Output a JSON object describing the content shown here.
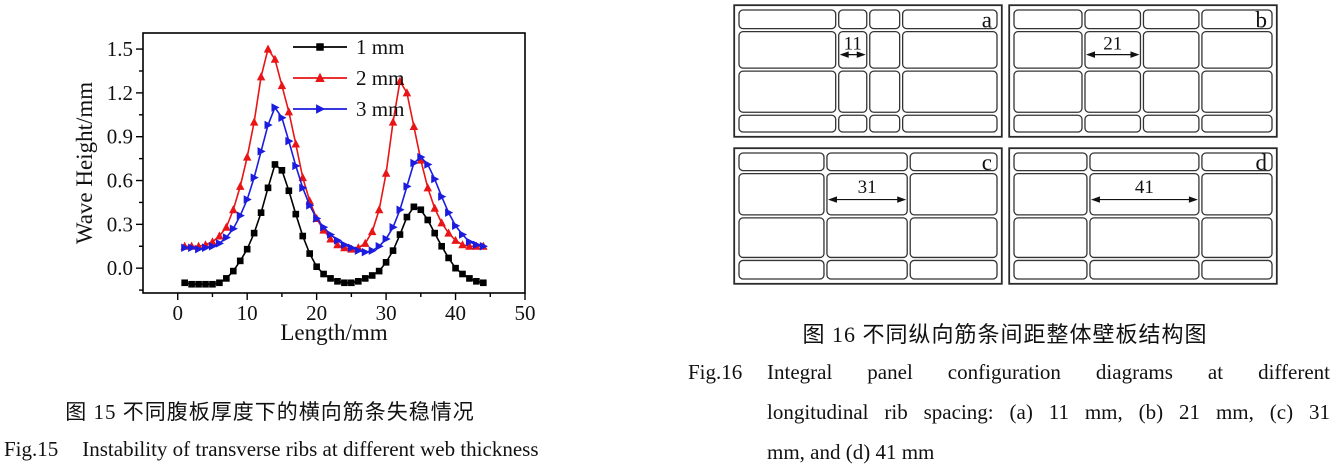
{
  "figure15": {
    "caption_zh": "图 15  不同腹板厚度下的横向筋条失稳情况",
    "caption_en_label": "Fig.15",
    "caption_en_text": "Instability of transverse ribs at different web thickness"
  },
  "chart_data": {
    "type": "line",
    "title": "",
    "xlabel": "Length/mm",
    "ylabel": "Wave Height/mm",
    "xlim": [
      -5,
      50
    ],
    "ylim": [
      -0.17,
      1.61
    ],
    "xticks": [
      0,
      10,
      20,
      30,
      40,
      50
    ],
    "yticks": [
      0.0,
      0.3,
      0.6,
      0.9,
      1.2,
      1.5
    ],
    "x_minor_step": 5,
    "y_minor_step": 0.15,
    "grid": false,
    "legend_position": "top-right-inside",
    "x": [
      1,
      2,
      3,
      4,
      5,
      6,
      7,
      8,
      9,
      10,
      11,
      12,
      13,
      14,
      15,
      16,
      17,
      18,
      19,
      20,
      21,
      22,
      23,
      24,
      25,
      26,
      27,
      28,
      29,
      30,
      31,
      32,
      33,
      34,
      35,
      36,
      37,
      38,
      39,
      40,
      41,
      42,
      43,
      44
    ],
    "series": [
      {
        "name": "1 mm",
        "color": "#000000",
        "marker": "square",
        "values": [
          -0.1,
          -0.11,
          -0.11,
          -0.11,
          -0.11,
          -0.1,
          -0.07,
          -0.02,
          0.05,
          0.13,
          0.24,
          0.38,
          0.55,
          0.71,
          0.67,
          0.53,
          0.37,
          0.22,
          0.1,
          0.01,
          -0.04,
          -0.07,
          -0.09,
          -0.1,
          -0.1,
          -0.09,
          -0.07,
          -0.05,
          -0.02,
          0.04,
          0.12,
          0.23,
          0.35,
          0.42,
          0.4,
          0.33,
          0.24,
          0.15,
          0.07,
          0.0,
          -0.04,
          -0.07,
          -0.09,
          -0.1
        ]
      },
      {
        "name": "2 mm",
        "color": "#e81416",
        "marker": "triangle-up",
        "values": [
          0.15,
          0.15,
          0.15,
          0.16,
          0.18,
          0.22,
          0.28,
          0.4,
          0.56,
          0.76,
          1.0,
          1.31,
          1.5,
          1.43,
          1.25,
          1.07,
          0.85,
          0.62,
          0.46,
          0.34,
          0.26,
          0.2,
          0.16,
          0.14,
          0.13,
          0.14,
          0.17,
          0.25,
          0.4,
          0.65,
          1.0,
          1.28,
          1.2,
          0.97,
          0.74,
          0.55,
          0.41,
          0.31,
          0.24,
          0.19,
          0.16,
          0.15,
          0.15,
          0.15
        ]
      },
      {
        "name": "3 mm",
        "color": "#1c1cdf",
        "marker": "triangle-right",
        "values": [
          0.14,
          0.14,
          0.13,
          0.14,
          0.15,
          0.17,
          0.21,
          0.27,
          0.36,
          0.47,
          0.62,
          0.8,
          0.98,
          1.1,
          1.03,
          0.87,
          0.7,
          0.55,
          0.43,
          0.34,
          0.28,
          0.23,
          0.19,
          0.16,
          0.14,
          0.12,
          0.11,
          0.12,
          0.15,
          0.2,
          0.28,
          0.4,
          0.56,
          0.72,
          0.76,
          0.71,
          0.61,
          0.49,
          0.38,
          0.29,
          0.23,
          0.18,
          0.16,
          0.15
        ]
      }
    ]
  },
  "figure16": {
    "caption_zh": "图 16 不同纵向筋条间距整体壁板结构图",
    "caption_en_label": "Fig.16",
    "caption_en_lines": [
      "Integral panel configuration diagrams at different",
      "longitudinal  rib spacing: (a) 11 mm, (b) 21 mm, (c) 31",
      "mm, and (d) 41 mm"
    ],
    "panels": [
      {
        "label": "a",
        "dim_value": "11",
        "dim_col": 1,
        "cols": [
          0.382,
          0.119,
          0.126,
          0.373
        ],
        "rows": [
          0.173,
          0.316,
          0.353,
          0.158
        ]
      },
      {
        "label": "b",
        "dim_value": "21",
        "dim_col": 1,
        "cols": [
          0.272,
          0.224,
          0.224,
          0.28
        ],
        "rows": [
          0.173,
          0.316,
          0.353,
          0.158
        ]
      },
      {
        "label": "c",
        "dim_value": "31",
        "dim_col": 1,
        "cols": [
          0.337,
          0.319,
          0.344
        ],
        "rows": [
          0.16,
          0.343,
          0.33,
          0.167
        ]
      },
      {
        "label": "d",
        "dim_value": "41",
        "dim_col": 1,
        "cols": [
          0.291,
          0.429,
          0.28
        ],
        "rows": [
          0.16,
          0.343,
          0.33,
          0.167
        ]
      }
    ],
    "line_color": "#333333"
  }
}
